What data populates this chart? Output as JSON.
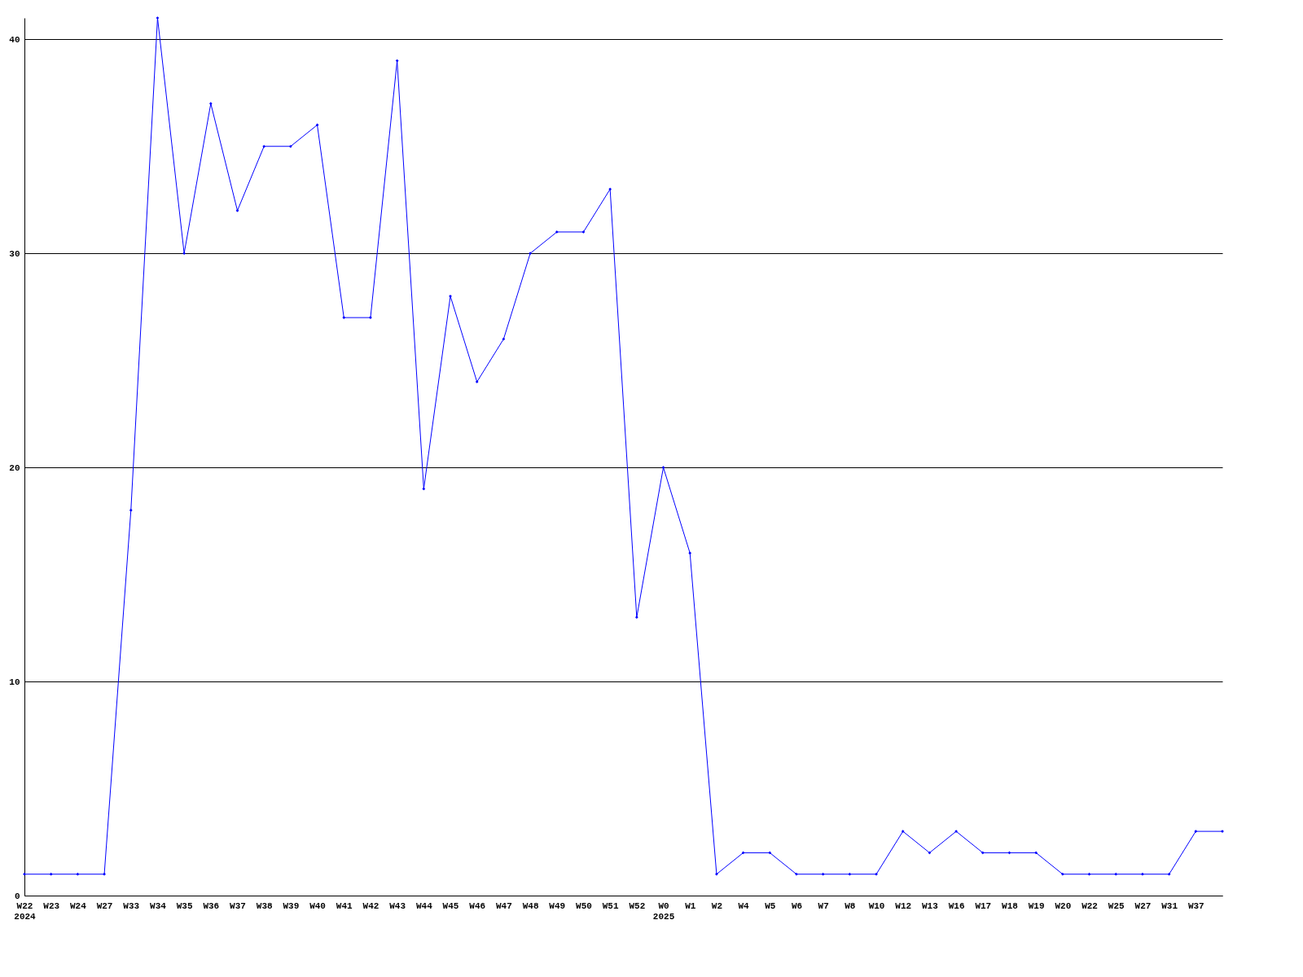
{
  "chart_data": {
    "type": "line",
    "categories": [
      "W22\n2024",
      "W23",
      "W24",
      "W27",
      "W33",
      "W34",
      "W35",
      "W36",
      "W37",
      "W38",
      "W39",
      "W40",
      "W41",
      "W42",
      "W43",
      "W44",
      "W45",
      "W46",
      "W47",
      "W48",
      "W49",
      "W50",
      "W51",
      "W52",
      "W0\n2025",
      "W1",
      "W2",
      "W4",
      "W5",
      "W6",
      "W7",
      "W8",
      "W10",
      "W12",
      "W13",
      "W16",
      "W17",
      "W18",
      "W19",
      "W20",
      "W22",
      "W25",
      "W27",
      "W31",
      "W37",
      null
    ],
    "series": [
      {
        "color": "#0000ff",
        "values": [
          1,
          1,
          1,
          1,
          18,
          41,
          30,
          37,
          32,
          35,
          35,
          36,
          27,
          27,
          39,
          19,
          28,
          24,
          26,
          30,
          31,
          31,
          33,
          13,
          20,
          16,
          1,
          2,
          2,
          1,
          1,
          1,
          1,
          3,
          2,
          3,
          2,
          2,
          2,
          1,
          1,
          1,
          1,
          1,
          3,
          3
        ]
      }
    ],
    "ylim": [
      0,
      41
    ],
    "yticks": [
      0,
      10,
      20,
      30,
      40
    ],
    "grid": "y",
    "marker": "diamond",
    "line_style": "solid",
    "legend": false
  }
}
